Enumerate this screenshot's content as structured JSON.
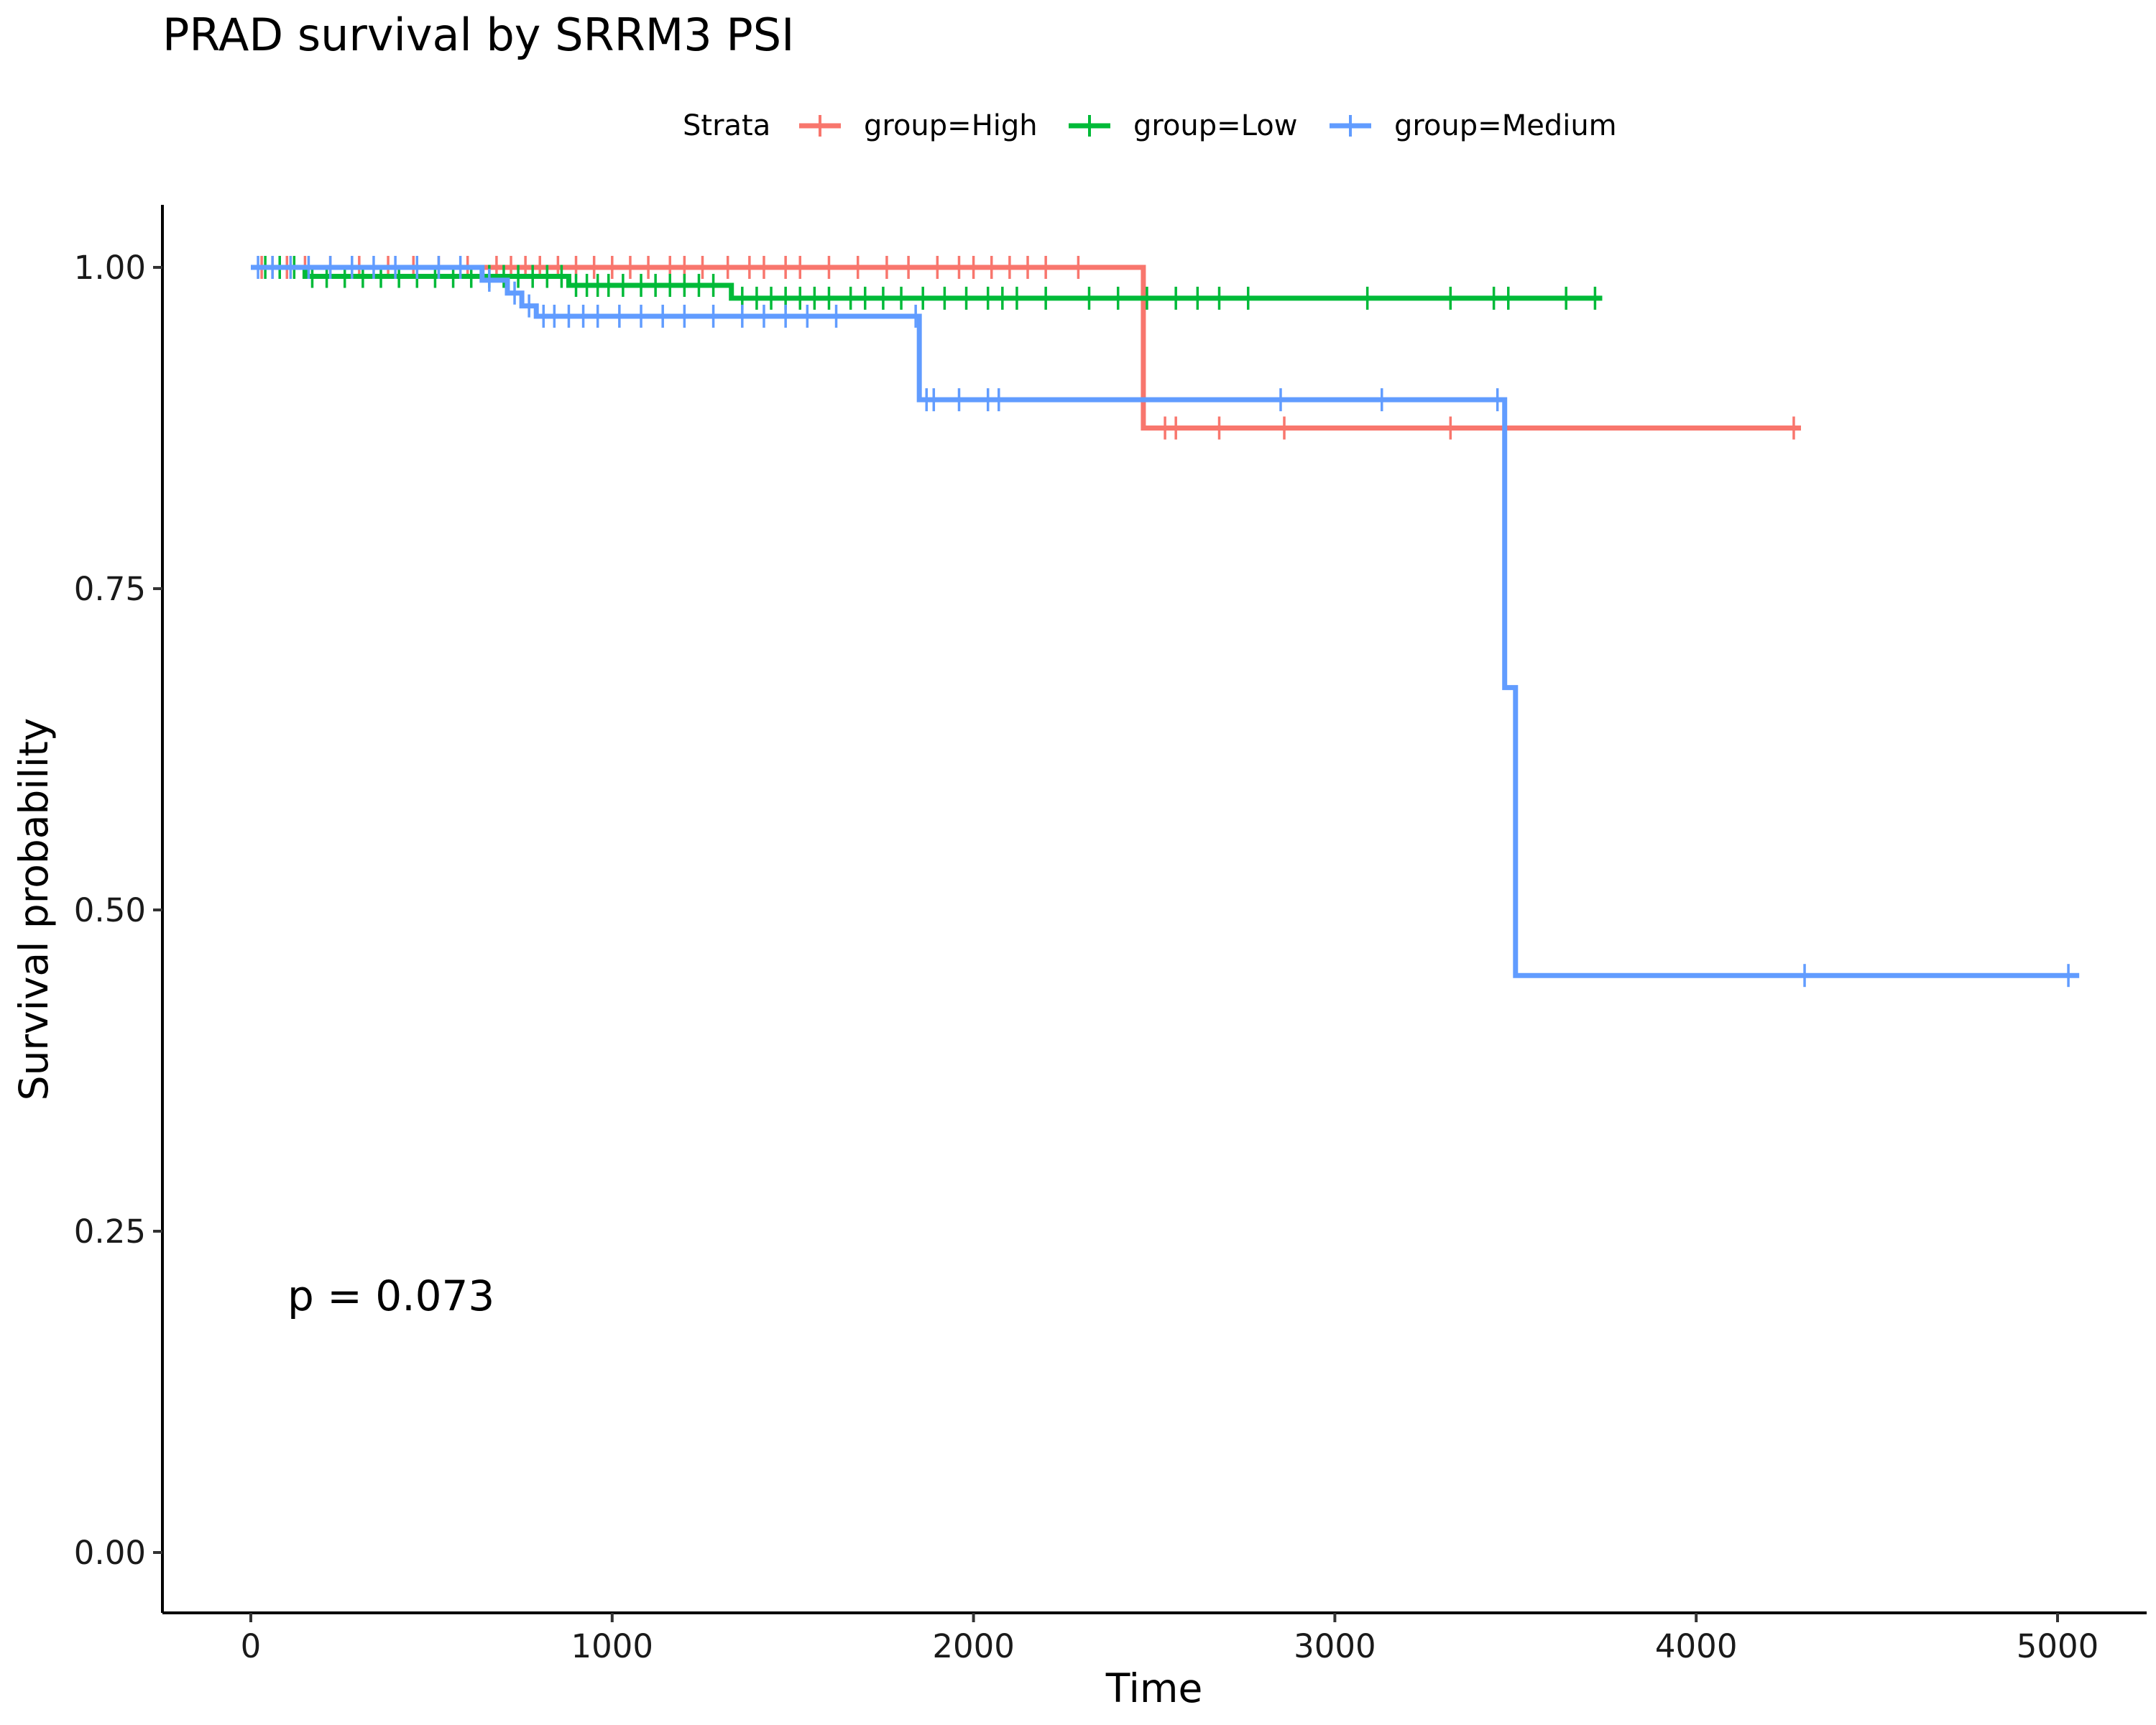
{
  "chart_data": {
    "type": "line",
    "title": "PRAD survival by SRRM3 PSI",
    "xlabel": "Time",
    "ylabel": "Survival probability",
    "xlim": [
      -250,
      5250
    ],
    "ylim": [
      -0.05,
      1.05
    ],
    "x_ticks": [
      0,
      1000,
      2000,
      3000,
      4000,
      5000
    ],
    "y_ticks": [
      0.0,
      0.25,
      0.5,
      0.75,
      1.0
    ],
    "y_tick_labels": [
      "0.00",
      "0.25",
      "0.50",
      "0.75",
      "1.00"
    ],
    "x_tick_labels": [
      "0",
      "1000",
      "2000",
      "3000",
      "4000",
      "5000"
    ],
    "grid": false,
    "legend": {
      "title": "Strata",
      "position": "top"
    },
    "annotation": "p = 0.073",
    "series": [
      {
        "name": "group=High",
        "color": "#F8766D",
        "steps": [
          [
            0,
            1.0
          ],
          [
            2470,
            1.0
          ],
          [
            2470,
            0.875
          ],
          [
            4290,
            0.875
          ]
        ],
        "censors": [
          [
            30,
            1.0
          ],
          [
            60,
            1.0
          ],
          [
            100,
            1.0
          ],
          [
            150,
            1.0
          ],
          [
            220,
            1.0
          ],
          [
            300,
            1.0
          ],
          [
            380,
            1.0
          ],
          [
            450,
            1.0
          ],
          [
            520,
            1.0
          ],
          [
            600,
            1.0
          ],
          [
            680,
            1.0
          ],
          [
            720,
            1.0
          ],
          [
            760,
            1.0
          ],
          [
            800,
            1.0
          ],
          [
            850,
            1.0
          ],
          [
            900,
            1.0
          ],
          [
            950,
            1.0
          ],
          [
            1000,
            1.0
          ],
          [
            1050,
            1.0
          ],
          [
            1100,
            1.0
          ],
          [
            1160,
            1.0
          ],
          [
            1200,
            1.0
          ],
          [
            1250,
            1.0
          ],
          [
            1320,
            1.0
          ],
          [
            1380,
            1.0
          ],
          [
            1420,
            1.0
          ],
          [
            1480,
            1.0
          ],
          [
            1520,
            1.0
          ],
          [
            1600,
            1.0
          ],
          [
            1680,
            1.0
          ],
          [
            1760,
            1.0
          ],
          [
            1820,
            1.0
          ],
          [
            1900,
            1.0
          ],
          [
            1960,
            1.0
          ],
          [
            2000,
            1.0
          ],
          [
            2050,
            1.0
          ],
          [
            2100,
            1.0
          ],
          [
            2150,
            1.0
          ],
          [
            2200,
            1.0
          ],
          [
            2290,
            1.0
          ],
          [
            2530,
            0.875
          ],
          [
            2560,
            0.875
          ],
          [
            2680,
            0.875
          ],
          [
            2860,
            0.875
          ],
          [
            3320,
            0.875
          ],
          [
            4270,
            0.875
          ]
        ]
      },
      {
        "name": "group=Low",
        "color": "#00BA38",
        "steps": [
          [
            0,
            1.0
          ],
          [
            150,
            1.0
          ],
          [
            150,
            0.993
          ],
          [
            880,
            0.993
          ],
          [
            880,
            0.986
          ],
          [
            1330,
            0.986
          ],
          [
            1330,
            0.976
          ],
          [
            3740,
            0.976
          ]
        ],
        "censors": [
          [
            40,
            1.0
          ],
          [
            80,
            1.0
          ],
          [
            120,
            1.0
          ],
          [
            170,
            0.993
          ],
          [
            210,
            0.993
          ],
          [
            260,
            0.993
          ],
          [
            310,
            0.993
          ],
          [
            360,
            0.993
          ],
          [
            410,
            0.993
          ],
          [
            460,
            0.993
          ],
          [
            510,
            0.993
          ],
          [
            560,
            0.993
          ],
          [
            610,
            0.993
          ],
          [
            660,
            0.993
          ],
          [
            700,
            0.993
          ],
          [
            740,
            0.993
          ],
          [
            780,
            0.993
          ],
          [
            820,
            0.993
          ],
          [
            860,
            0.993
          ],
          [
            900,
            0.986
          ],
          [
            930,
            0.986
          ],
          [
            960,
            0.986
          ],
          [
            990,
            0.986
          ],
          [
            1030,
            0.986
          ],
          [
            1080,
            0.986
          ],
          [
            1120,
            0.986
          ],
          [
            1160,
            0.986
          ],
          [
            1200,
            0.986
          ],
          [
            1240,
            0.986
          ],
          [
            1280,
            0.986
          ],
          [
            1360,
            0.976
          ],
          [
            1400,
            0.976
          ],
          [
            1440,
            0.976
          ],
          [
            1480,
            0.976
          ],
          [
            1520,
            0.976
          ],
          [
            1560,
            0.976
          ],
          [
            1600,
            0.976
          ],
          [
            1660,
            0.976
          ],
          [
            1700,
            0.976
          ],
          [
            1750,
            0.976
          ],
          [
            1800,
            0.976
          ],
          [
            1860,
            0.976
          ],
          [
            1920,
            0.976
          ],
          [
            1980,
            0.976
          ],
          [
            2040,
            0.976
          ],
          [
            2080,
            0.976
          ],
          [
            2120,
            0.976
          ],
          [
            2200,
            0.976
          ],
          [
            2320,
            0.976
          ],
          [
            2400,
            0.976
          ],
          [
            2480,
            0.976
          ],
          [
            2560,
            0.976
          ],
          [
            2620,
            0.976
          ],
          [
            2680,
            0.976
          ],
          [
            2760,
            0.976
          ],
          [
            3090,
            0.976
          ],
          [
            3320,
            0.976
          ],
          [
            3440,
            0.976
          ],
          [
            3480,
            0.976
          ],
          [
            3640,
            0.976
          ],
          [
            3720,
            0.976
          ]
        ]
      },
      {
        "name": "group=Medium",
        "color": "#619CFF",
        "steps": [
          [
            0,
            1.0
          ],
          [
            640,
            1.0
          ],
          [
            640,
            0.99
          ],
          [
            710,
            0.99
          ],
          [
            710,
            0.98
          ],
          [
            750,
            0.98
          ],
          [
            750,
            0.97
          ],
          [
            790,
            0.97
          ],
          [
            790,
            0.962
          ],
          [
            1850,
            0.962
          ],
          [
            1850,
            0.897
          ],
          [
            3470,
            0.897
          ],
          [
            3470,
            0.673
          ],
          [
            3500,
            0.673
          ],
          [
            3500,
            0.449
          ],
          [
            5060,
            0.449
          ]
        ],
        "censors": [
          [
            20,
            1.0
          ],
          [
            60,
            1.0
          ],
          [
            110,
            1.0
          ],
          [
            160,
            1.0
          ],
          [
            220,
            1.0
          ],
          [
            280,
            1.0
          ],
          [
            340,
            1.0
          ],
          [
            400,
            1.0
          ],
          [
            460,
            1.0
          ],
          [
            520,
            1.0
          ],
          [
            580,
            1.0
          ],
          [
            660,
            0.99
          ],
          [
            730,
            0.98
          ],
          [
            770,
            0.97
          ],
          [
            810,
            0.962
          ],
          [
            840,
            0.962
          ],
          [
            880,
            0.962
          ],
          [
            920,
            0.962
          ],
          [
            960,
            0.962
          ],
          [
            1020,
            0.962
          ],
          [
            1080,
            0.962
          ],
          [
            1140,
            0.962
          ],
          [
            1200,
            0.962
          ],
          [
            1280,
            0.962
          ],
          [
            1360,
            0.962
          ],
          [
            1420,
            0.962
          ],
          [
            1480,
            0.962
          ],
          [
            1540,
            0.962
          ],
          [
            1620,
            0.962
          ],
          [
            1840,
            0.962
          ],
          [
            1870,
            0.897
          ],
          [
            1890,
            0.897
          ],
          [
            1960,
            0.897
          ],
          [
            2040,
            0.897
          ],
          [
            2070,
            0.897
          ],
          [
            2850,
            0.897
          ],
          [
            3130,
            0.897
          ],
          [
            3450,
            0.897
          ],
          [
            4300,
            0.449
          ],
          [
            5030,
            0.449
          ]
        ]
      }
    ]
  }
}
